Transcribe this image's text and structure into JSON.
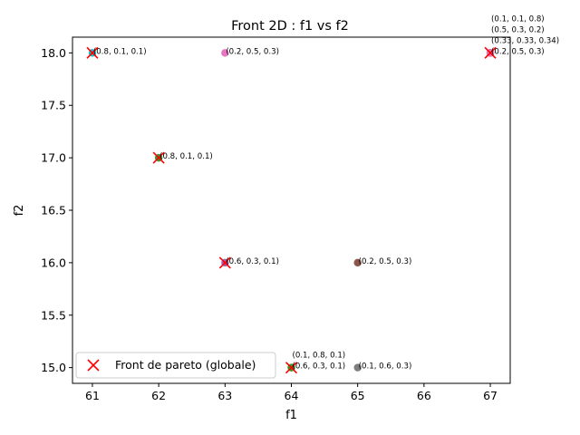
{
  "chart_data": {
    "type": "scatter",
    "title": "Front 2D : f1 vs f2",
    "xlabel": "f1",
    "ylabel": "f2",
    "xlim": [
      60.7,
      67.3
    ],
    "ylim": [
      14.85,
      18.15
    ],
    "xticks": [
      "61",
      "62",
      "63",
      "64",
      "65",
      "66",
      "67"
    ],
    "xtick_values": [
      61,
      62,
      63,
      64,
      65,
      66,
      67
    ],
    "yticks": [
      "15.0",
      "15.5",
      "16.0",
      "16.5",
      "17.0",
      "17.5",
      "18.0"
    ],
    "ytick_values": [
      15.0,
      15.5,
      16.0,
      16.5,
      17.0,
      17.5,
      18.0
    ],
    "grid": false,
    "legend": {
      "placement": "lower-left",
      "entries": [
        {
          "label": "Front de pareto (globale)",
          "marker": "x",
          "color": "#ff0000"
        }
      ]
    },
    "points": [
      {
        "x": 61,
        "y": 18,
        "color": "#17becf",
        "label": "(0.8, 0.1, 0.1)"
      },
      {
        "x": 63,
        "y": 18,
        "color": "#e377c2",
        "label": "(0.2, 0.5, 0.3)"
      },
      {
        "x": 62,
        "y": 17,
        "color": "#2ca02c",
        "label": "(0.8, 0.1, 0.1)"
      },
      {
        "x": 63,
        "y": 16,
        "color": "#9467bd",
        "label": "(0.6, 0.3, 0.1)"
      },
      {
        "x": 65,
        "y": 16,
        "color": "#8c564b",
        "label": "(0.2, 0.5, 0.3)"
      },
      {
        "x": 64,
        "y": 15,
        "color": "#bcbd22",
        "label": "(0.1, 0.8, 0.1)"
      },
      {
        "x": 64,
        "y": 15,
        "color": "#2ca02c",
        "label": "(0.6, 0.3, 0.1)"
      },
      {
        "x": 65,
        "y": 15,
        "color": "#7f7f7f",
        "label": "(0.1, 0.6, 0.3)"
      },
      {
        "x": 67,
        "y": 18,
        "color": "#1f77b4",
        "label": "(0.1, 0.1, 0.8)"
      },
      {
        "x": 67,
        "y": 18,
        "color": "#ff7f0e",
        "label": "(0.5, 0.3, 0.2)"
      },
      {
        "x": 67,
        "y": 18,
        "color": "#d62728",
        "label": "(0.33, 0.33, 0.34)"
      },
      {
        "x": 67,
        "y": 18,
        "color": "#e377c2",
        "label": "(0.2, 0.5, 0.3)"
      }
    ],
    "pareto": [
      {
        "x": 61,
        "y": 18
      },
      {
        "x": 62,
        "y": 17
      },
      {
        "x": 63,
        "y": 16
      },
      {
        "x": 64,
        "y": 15
      },
      {
        "x": 67,
        "y": 18
      }
    ]
  }
}
